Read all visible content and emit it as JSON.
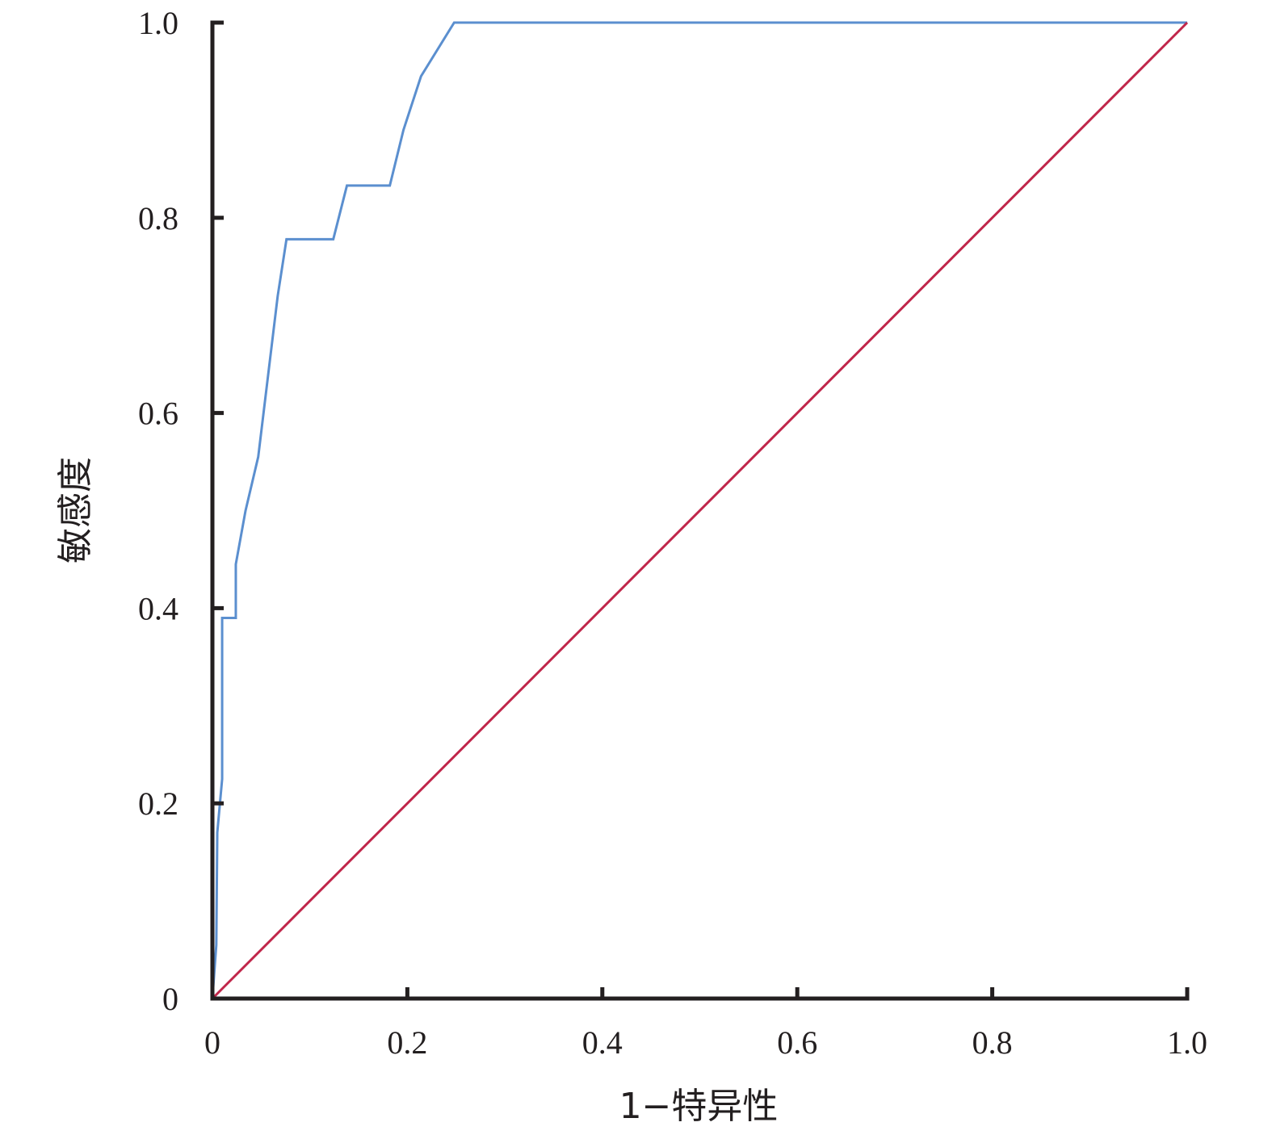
{
  "chart_data": {
    "type": "line",
    "title": "",
    "xlabel": "1−特异性",
    "ylabel": "敏感度",
    "xlim": [
      0,
      1.0
    ],
    "ylim": [
      0,
      1.0
    ],
    "grid": false,
    "x_ticks": [
      "0",
      "0.2",
      "0.4",
      "0.6",
      "0.8",
      "1.0"
    ],
    "y_ticks": [
      "0",
      "0.2",
      "0.4",
      "0.6",
      "0.8",
      "1.0"
    ],
    "x_tick_values": [
      0,
      0.2,
      0.4,
      0.6,
      0.8,
      1.0
    ],
    "y_tick_values": [
      0,
      0.2,
      0.4,
      0.6,
      0.8,
      1.0
    ],
    "series": [
      {
        "color": "#5b8fcf",
        "points": [
          [
            0,
            0
          ],
          [
            0.004,
            0.055
          ],
          [
            0.005,
            0.17
          ],
          [
            0.01,
            0.225
          ],
          [
            0.01,
            0.39
          ],
          [
            0.024,
            0.39
          ],
          [
            0.024,
            0.445
          ],
          [
            0.034,
            0.5
          ],
          [
            0.047,
            0.555
          ],
          [
            0.067,
            0.72
          ],
          [
            0.076,
            0.778
          ],
          [
            0.124,
            0.778
          ],
          [
            0.138,
            0.833
          ],
          [
            0.182,
            0.833
          ],
          [
            0.196,
            0.89
          ],
          [
            0.214,
            0.945
          ],
          [
            0.248,
            1.0
          ],
          [
            1.0,
            1.0
          ]
        ]
      },
      {
        "color": "#c0264a",
        "points": [
          [
            0,
            0
          ],
          [
            1.0,
            1.0
          ]
        ]
      }
    ]
  }
}
